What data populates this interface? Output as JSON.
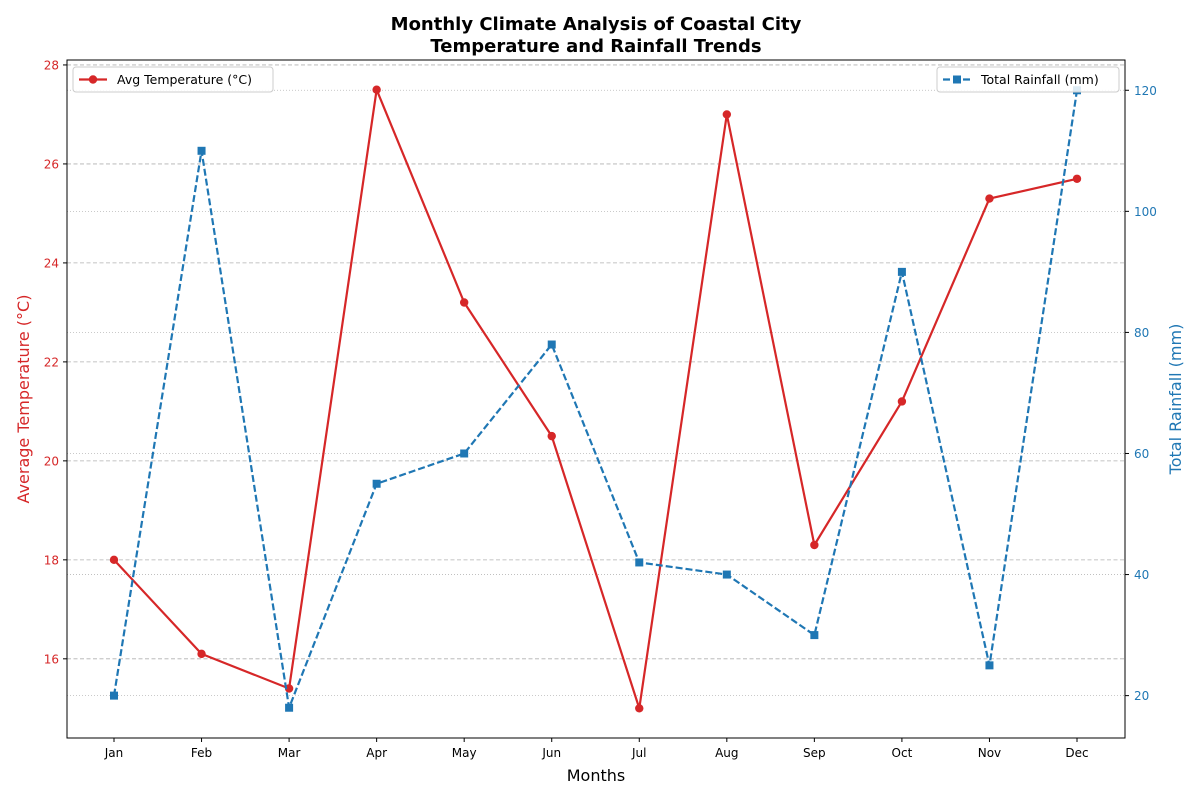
{
  "chart_data": {
    "type": "line",
    "title_line1": "Monthly Climate Analysis of Coastal City",
    "title_line2": "Temperature and Rainfall Trends",
    "xlabel": "Months",
    "ylabel_left": "Average Temperature (°C)",
    "ylabel_right": "Total Rainfall (mm)",
    "categories": [
      "Jan",
      "Feb",
      "Mar",
      "Apr",
      "May",
      "Jun",
      "Jul",
      "Aug",
      "Sep",
      "Oct",
      "Nov",
      "Dec"
    ],
    "y_left": {
      "lim": [
        14.4,
        28.1
      ],
      "ticks": [
        16,
        18,
        20,
        22,
        24,
        26,
        28
      ]
    },
    "y_right": {
      "lim": [
        13.0,
        125.0
      ],
      "ticks": [
        20,
        40,
        60,
        80,
        100,
        120
      ]
    },
    "series": [
      {
        "name": "Avg Temperature (°C)",
        "axis": "left",
        "color": "#d62728",
        "line_style": "solid",
        "marker": "circle",
        "values": [
          18.0,
          16.1,
          15.4,
          27.5,
          23.2,
          20.5,
          15.0,
          27.0,
          18.3,
          21.2,
          25.3,
          25.7
        ]
      },
      {
        "name": "Total Rainfall (mm)",
        "axis": "right",
        "color": "#1f77b4",
        "line_style": "dashed",
        "marker": "square",
        "values": [
          20,
          110,
          18,
          55,
          60,
          78,
          42,
          40,
          30,
          90,
          25,
          120
        ]
      }
    ],
    "grid_left": true,
    "grid_right": true,
    "legend_left_position": "upper-left",
    "legend_right_position": "upper-right"
  }
}
